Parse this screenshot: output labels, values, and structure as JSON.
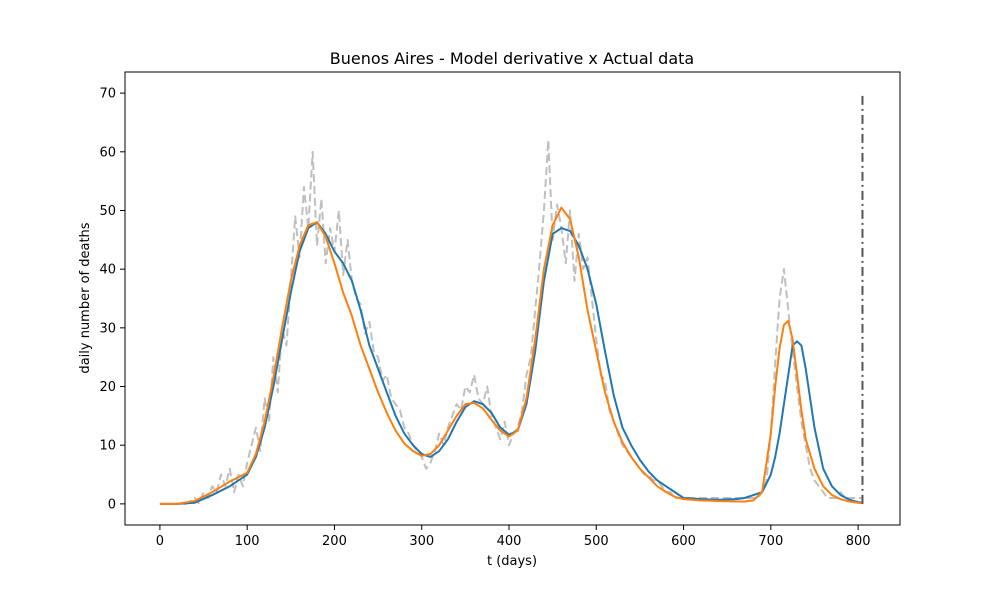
{
  "chart_data": {
    "type": "line",
    "title": "Buenos Aires - Model derivative x Actual data",
    "xlabel": "t (days)",
    "ylabel": "daily number of deaths",
    "xlim": [
      -40,
      848
    ],
    "ylim": [
      -3.6,
      73.6
    ],
    "xticks": [
      0,
      100,
      200,
      300,
      400,
      500,
      600,
      700,
      800
    ],
    "yticks": [
      0,
      10,
      20,
      30,
      40,
      50,
      60,
      70
    ],
    "grid": false,
    "legend": "none",
    "series": [
      {
        "key": "actual",
        "color": "#bfbfbf",
        "style": "dashed",
        "x": [
          0,
          30,
          40,
          45,
          50,
          55,
          60,
          65,
          70,
          75,
          80,
          85,
          90,
          95,
          100,
          105,
          110,
          115,
          120,
          125,
          130,
          135,
          140,
          145,
          150,
          155,
          160,
          165,
          170,
          175,
          180,
          185,
          190,
          195,
          200,
          205,
          210,
          215,
          220,
          225,
          230,
          235,
          240,
          245,
          250,
          255,
          260,
          265,
          270,
          275,
          280,
          285,
          290,
          295,
          300,
          305,
          310,
          315,
          320,
          325,
          330,
          335,
          340,
          345,
          350,
          355,
          360,
          365,
          370,
          375,
          380,
          385,
          390,
          395,
          400,
          405,
          410,
          415,
          420,
          425,
          430,
          435,
          440,
          445,
          450,
          455,
          460,
          465,
          470,
          475,
          480,
          485,
          490,
          495,
          500,
          505,
          510,
          515,
          520,
          525,
          530,
          535,
          540,
          545,
          550,
          555,
          560,
          565,
          570,
          575,
          580,
          585,
          590,
          595,
          600,
          605,
          610,
          615,
          620,
          625,
          630,
          635,
          640,
          645,
          650,
          655,
          660,
          665,
          670,
          675,
          680,
          685,
          690,
          695,
          700,
          705,
          710,
          715,
          720,
          725,
          730,
          735,
          740,
          745,
          750,
          755,
          760,
          765,
          770,
          775,
          780,
          785,
          790,
          795,
          800,
          805
        ],
        "y": [
          0,
          0,
          1,
          0,
          2,
          1,
          3,
          2,
          5,
          3,
          6,
          2,
          5,
          3,
          7,
          10,
          13,
          9,
          18,
          14,
          25,
          19,
          30,
          27,
          38,
          49,
          42,
          54,
          47,
          60,
          44,
          52,
          41,
          47,
          43,
          50,
          39,
          45,
          38,
          35,
          34,
          29,
          31,
          26,
          25,
          21,
          22,
          18,
          17,
          16,
          13,
          12,
          10,
          9,
          8,
          6,
          7,
          9,
          12,
          10,
          13,
          15,
          17,
          16,
          20,
          19,
          22,
          18,
          17,
          20,
          15,
          13,
          11,
          14,
          10,
          12,
          13,
          16,
          22,
          25,
          33,
          41,
          50,
          62,
          45,
          51,
          47,
          41,
          50,
          38,
          46,
          40,
          42,
          35,
          28,
          22,
          21,
          16,
          14,
          12,
          10,
          9,
          8,
          7,
          6,
          5,
          5,
          4,
          4,
          3,
          2,
          2,
          1,
          1,
          1,
          1,
          1,
          1,
          1,
          1,
          1,
          1,
          1,
          1,
          1,
          1,
          1,
          1,
          1,
          1,
          1,
          1,
          2,
          4,
          12,
          24,
          35,
          40,
          33,
          26,
          20,
          14,
          10,
          6,
          4,
          3,
          2,
          1,
          1,
          1,
          2,
          1,
          1,
          1,
          1,
          1
        ]
      },
      {
        "key": "model_blue",
        "color": "#1f77b4",
        "style": "solid",
        "x": [
          0,
          20,
          40,
          60,
          80,
          100,
          110,
          120,
          130,
          140,
          150,
          160,
          170,
          180,
          190,
          200,
          210,
          220,
          230,
          240,
          250,
          260,
          270,
          280,
          290,
          300,
          310,
          320,
          330,
          340,
          350,
          360,
          370,
          380,
          390,
          400,
          410,
          420,
          430,
          440,
          450,
          460,
          470,
          480,
          490,
          500,
          510,
          520,
          530,
          540,
          550,
          560,
          570,
          580,
          590,
          600,
          620,
          640,
          660,
          670,
          680,
          690,
          700,
          705,
          710,
          715,
          720,
          725,
          730,
          735,
          740,
          750,
          760,
          770,
          780,
          790,
          800,
          805
        ],
        "y": [
          0,
          0,
          0.2,
          1.5,
          3,
          5,
          8,
          13,
          20,
          28,
          36,
          43,
          47,
          48,
          46,
          43,
          41,
          38,
          33,
          27,
          23,
          19,
          15,
          12,
          10,
          8.5,
          8,
          9,
          11,
          14,
          16.5,
          17.5,
          17,
          15.5,
          13,
          11.8,
          12.5,
          17,
          26,
          38,
          46,
          47,
          46.5,
          44,
          40,
          34,
          26,
          18.5,
          13,
          10,
          7.5,
          5.5,
          4,
          3,
          2,
          1,
          0.8,
          0.7,
          0.8,
          1,
          1.5,
          2,
          5,
          8,
          12,
          17,
          22,
          27,
          27.7,
          27,
          23,
          13,
          6,
          3,
          1.5,
          0.7,
          0.3,
          0.2
        ]
      },
      {
        "key": "model_orange",
        "color": "#ff7f0e",
        "style": "solid",
        "x": [
          0,
          20,
          40,
          60,
          80,
          100,
          110,
          120,
          130,
          140,
          150,
          160,
          170,
          180,
          190,
          200,
          210,
          220,
          230,
          240,
          250,
          260,
          270,
          280,
          290,
          300,
          310,
          320,
          330,
          340,
          350,
          360,
          370,
          380,
          390,
          400,
          410,
          420,
          430,
          440,
          450,
          460,
          470,
          480,
          490,
          500,
          510,
          520,
          530,
          540,
          550,
          560,
          570,
          580,
          590,
          600,
          620,
          640,
          660,
          670,
          680,
          690,
          700,
          705,
          710,
          715,
          720,
          725,
          730,
          735,
          740,
          750,
          760,
          770,
          780,
          790,
          800,
          805
        ],
        "y": [
          0,
          0,
          0.5,
          2,
          3.8,
          5.3,
          8.5,
          14,
          21.5,
          30,
          38,
          44,
          47.5,
          48,
          45.5,
          41,
          36,
          32,
          27,
          23,
          19,
          15.5,
          12.5,
          10.3,
          9,
          8.2,
          8.5,
          10,
          12.5,
          15,
          17,
          17.2,
          16.3,
          14.3,
          12.5,
          11.5,
          12.5,
          18,
          28,
          40,
          47.5,
          50.5,
          48.5,
          42,
          33,
          26,
          19,
          14,
          10.5,
          8,
          6,
          4.5,
          3,
          2,
          1.2,
          0.8,
          0.6,
          0.5,
          0.4,
          0.4,
          0.6,
          2,
          12,
          20,
          26.5,
          30.5,
          31.2,
          28,
          22,
          16,
          11,
          6,
          3,
          1.5,
          0.8,
          0.4,
          0.2,
          0.1
        ]
      }
    ],
    "vertical_line": {
      "x": 805,
      "y_range": [
        0,
        70
      ],
      "color": "#555555",
      "style": "dashdot"
    }
  }
}
